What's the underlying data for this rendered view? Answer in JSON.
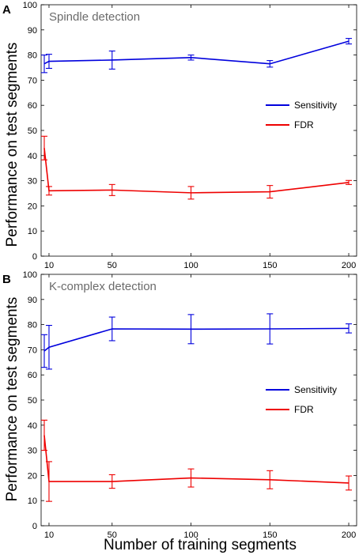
{
  "figure": {
    "ylabel": "Performance on test segments",
    "xlabel": "Number of training segments"
  },
  "chart_data": [
    {
      "panel_letter": "A",
      "title": "Spindle detection",
      "type": "line",
      "x_ticks": [
        10,
        50,
        100,
        150,
        200
      ],
      "y_ticks": [
        0,
        10,
        20,
        30,
        40,
        50,
        60,
        70,
        80,
        90,
        100
      ],
      "xlim": [
        5,
        205
      ],
      "ylim": [
        0,
        100
      ],
      "grid": false,
      "legend_position": "right",
      "series": [
        {
          "name": "Sensitivity",
          "color": "#0000dd",
          "points": [
            {
              "x": 7,
              "y": 76.5,
              "err": 3.5
            },
            {
              "x": 10,
              "y": 77.5,
              "err": 2.8
            },
            {
              "x": 50,
              "y": 78,
              "err": 3.6
            },
            {
              "x": 100,
              "y": 79,
              "err": 1.0
            },
            {
              "x": 150,
              "y": 76.5,
              "err": 1.3
            },
            {
              "x": 200,
              "y": 85.5,
              "err": 1.1
            }
          ]
        },
        {
          "name": "FDR",
          "color": "#ee0000",
          "points": [
            {
              "x": 7,
              "y": 43,
              "err": 4.7
            },
            {
              "x": 10,
              "y": 26,
              "err": 1.7
            },
            {
              "x": 50,
              "y": 26.3,
              "err": 2.2
            },
            {
              "x": 100,
              "y": 25.2,
              "err": 2.5
            },
            {
              "x": 150,
              "y": 25.6,
              "err": 2.5
            },
            {
              "x": 200,
              "y": 29.3,
              "err": 0.8
            }
          ]
        }
      ]
    },
    {
      "panel_letter": "B",
      "title": "K-complex detection",
      "type": "line",
      "x_ticks": [
        10,
        50,
        100,
        150,
        200
      ],
      "y_ticks": [
        0,
        10,
        20,
        30,
        40,
        50,
        60,
        70,
        80,
        90,
        100
      ],
      "xlim": [
        5,
        205
      ],
      "ylim": [
        0,
        100
      ],
      "grid": false,
      "legend_position": "right",
      "series": [
        {
          "name": "Sensitivity",
          "color": "#0000dd",
          "points": [
            {
              "x": 7,
              "y": 69.5,
              "err": 6.5
            },
            {
              "x": 10,
              "y": 71,
              "err": 8.7
            },
            {
              "x": 50,
              "y": 78.3,
              "err": 4.7
            },
            {
              "x": 100,
              "y": 78.2,
              "err": 5.8
            },
            {
              "x": 150,
              "y": 78.3,
              "err": 6.0
            },
            {
              "x": 200,
              "y": 78.5,
              "err": 1.8
            }
          ]
        },
        {
          "name": "FDR",
          "color": "#ee0000",
          "points": [
            {
              "x": 7,
              "y": 36,
              "err": 6.0
            },
            {
              "x": 10,
              "y": 17.6,
              "err": 7.9
            },
            {
              "x": 50,
              "y": 17.6,
              "err": 2.7
            },
            {
              "x": 100,
              "y": 19,
              "err": 3.6
            },
            {
              "x": 150,
              "y": 18.3,
              "err": 3.6
            },
            {
              "x": 200,
              "y": 17,
              "err": 2.8
            }
          ]
        }
      ]
    }
  ]
}
